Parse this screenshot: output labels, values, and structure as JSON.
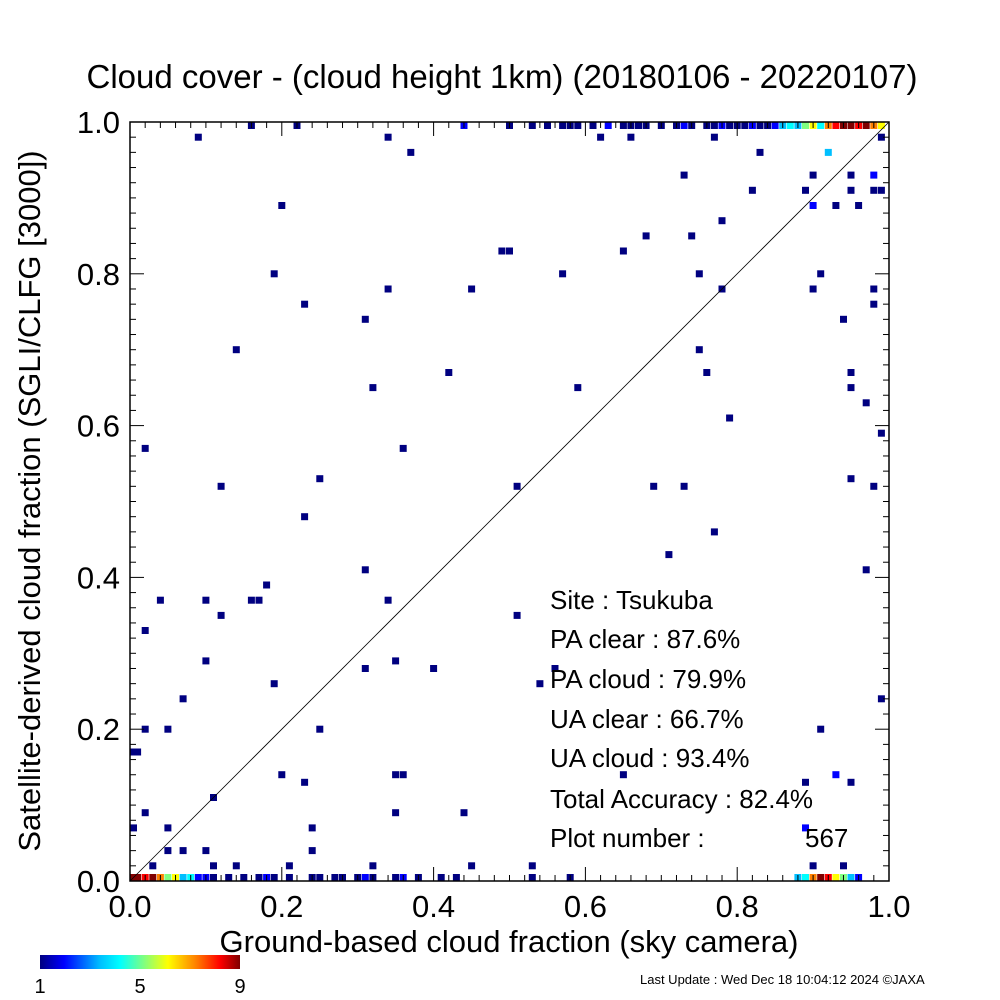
{
  "chart_data": {
    "type": "heatmap",
    "title": "Cloud cover - (cloud height 1km)  (20180106 - 20220107)",
    "xlabel": "Ground-based cloud fraction (sky camera)",
    "ylabel": "Satellite-derived cloud fraction (SGLI/CLFG [3000])",
    "xlim": [
      0.0,
      1.0
    ],
    "ylim": [
      0.0,
      1.0
    ],
    "x_ticks": [
      "0.0",
      "0.2",
      "0.4",
      "0.6",
      "0.8",
      "1.0"
    ],
    "y_ticks": [
      "0.0",
      "0.2",
      "0.4",
      "0.6",
      "0.8",
      "1.0"
    ],
    "reference_line": "y = x",
    "grid": false,
    "colorbar": {
      "min": 1,
      "max": 9,
      "tick_labels": [
        "1",
        "5",
        "9"
      ],
      "colors": [
        "#000080",
        "#0000ff",
        "#00bfff",
        "#00ffff",
        "#80ff80",
        "#ffff00",
        "#ff8000",
        "#ff0000",
        "#800000"
      ]
    },
    "points": [
      [
        0.0,
        0.0,
        9
      ],
      [
        0.01,
        0.0,
        9
      ],
      [
        0.02,
        0.0,
        8
      ],
      [
        0.03,
        0.0,
        9
      ],
      [
        0.04,
        0.0,
        7
      ],
      [
        0.05,
        0.0,
        5
      ],
      [
        0.06,
        0.0,
        6
      ],
      [
        0.07,
        0.0,
        3
      ],
      [
        0.08,
        0.0,
        4
      ],
      [
        0.09,
        0.0,
        2
      ],
      [
        0.1,
        0.0,
        2
      ],
      [
        0.11,
        0.0,
        1
      ],
      [
        0.13,
        0.0,
        1
      ],
      [
        0.15,
        0.0,
        1
      ],
      [
        0.17,
        0.0,
        1
      ],
      [
        0.18,
        0.0,
        2
      ],
      [
        0.19,
        0.0,
        1
      ],
      [
        0.21,
        0.0,
        1
      ],
      [
        0.24,
        0.0,
        1
      ],
      [
        0.25,
        0.0,
        1
      ],
      [
        0.27,
        0.0,
        1
      ],
      [
        0.28,
        0.0,
        1
      ],
      [
        0.3,
        0.0,
        1
      ],
      [
        0.31,
        0.0,
        2
      ],
      [
        0.32,
        0.0,
        1
      ],
      [
        0.35,
        0.0,
        1
      ],
      [
        0.36,
        0.0,
        2
      ],
      [
        0.38,
        0.0,
        1
      ],
      [
        0.41,
        0.0,
        1
      ],
      [
        0.43,
        0.0,
        1
      ],
      [
        0.53,
        0.0,
        1
      ],
      [
        0.58,
        0.0,
        1
      ],
      [
        0.88,
        0.0,
        3
      ],
      [
        0.89,
        0.0,
        4
      ],
      [
        0.9,
        0.0,
        7
      ],
      [
        0.91,
        0.0,
        9
      ],
      [
        0.92,
        0.0,
        8
      ],
      [
        0.93,
        0.0,
        6
      ],
      [
        0.94,
        0.0,
        5
      ],
      [
        0.95,
        0.0,
        3
      ],
      [
        0.96,
        0.0,
        2
      ],
      [
        0.16,
        1.0,
        1
      ],
      [
        0.22,
        1.0,
        1
      ],
      [
        0.44,
        1.0,
        2
      ],
      [
        0.5,
        1.0,
        1
      ],
      [
        0.53,
        1.0,
        1
      ],
      [
        0.55,
        1.0,
        1
      ],
      [
        0.57,
        1.0,
        1
      ],
      [
        0.58,
        1.0,
        1
      ],
      [
        0.59,
        1.0,
        1
      ],
      [
        0.61,
        1.0,
        1
      ],
      [
        0.63,
        1.0,
        2
      ],
      [
        0.65,
        1.0,
        1
      ],
      [
        0.66,
        1.0,
        1
      ],
      [
        0.67,
        1.0,
        1
      ],
      [
        0.68,
        1.0,
        1
      ],
      [
        0.7,
        1.0,
        1
      ],
      [
        0.72,
        1.0,
        1
      ],
      [
        0.73,
        1.0,
        2
      ],
      [
        0.74,
        1.0,
        1
      ],
      [
        0.76,
        1.0,
        1
      ],
      [
        0.77,
        1.0,
        1
      ],
      [
        0.78,
        1.0,
        2
      ],
      [
        0.79,
        1.0,
        1
      ],
      [
        0.8,
        1.0,
        1
      ],
      [
        0.81,
        1.0,
        1
      ],
      [
        0.82,
        1.0,
        2
      ],
      [
        0.83,
        1.0,
        1
      ],
      [
        0.84,
        1.0,
        1
      ],
      [
        0.85,
        1.0,
        2
      ],
      [
        0.86,
        1.0,
        3
      ],
      [
        0.87,
        1.0,
        4
      ],
      [
        0.88,
        1.0,
        3
      ],
      [
        0.89,
        1.0,
        5
      ],
      [
        0.9,
        1.0,
        6
      ],
      [
        0.91,
        1.0,
        4
      ],
      [
        0.92,
        1.0,
        7
      ],
      [
        0.93,
        1.0,
        8
      ],
      [
        0.94,
        1.0,
        9
      ],
      [
        0.95,
        1.0,
        9
      ],
      [
        0.96,
        1.0,
        8
      ],
      [
        0.97,
        1.0,
        9
      ],
      [
        0.98,
        1.0,
        7
      ],
      [
        0.99,
        1.0,
        6
      ],
      [
        0.09,
        0.98,
        1
      ],
      [
        0.34,
        0.98,
        1
      ],
      [
        0.37,
        0.96,
        1
      ],
      [
        0.2,
        0.89,
        1
      ],
      [
        0.19,
        0.8,
        1
      ],
      [
        0.23,
        0.76,
        1
      ],
      [
        0.31,
        0.74,
        1
      ],
      [
        0.34,
        0.78,
        1
      ],
      [
        0.14,
        0.7,
        1
      ],
      [
        0.32,
        0.65,
        1
      ],
      [
        0.42,
        0.67,
        1
      ],
      [
        0.45,
        0.78,
        1
      ],
      [
        0.49,
        0.83,
        1
      ],
      [
        0.5,
        0.83,
        1
      ],
      [
        0.57,
        0.8,
        1
      ],
      [
        0.59,
        0.65,
        1
      ],
      [
        0.65,
        0.83,
        1
      ],
      [
        0.68,
        0.85,
        1
      ],
      [
        0.73,
        0.93,
        1
      ],
      [
        0.74,
        0.85,
        1
      ],
      [
        0.75,
        0.8,
        1
      ],
      [
        0.75,
        0.7,
        1
      ],
      [
        0.76,
        0.67,
        1
      ],
      [
        0.77,
        0.98,
        1
      ],
      [
        0.78,
        0.87,
        1
      ],
      [
        0.78,
        0.78,
        1
      ],
      [
        0.79,
        0.61,
        1
      ],
      [
        0.82,
        0.91,
        1
      ],
      [
        0.83,
        0.96,
        1
      ],
      [
        0.89,
        0.91,
        1
      ],
      [
        0.9,
        0.93,
        1
      ],
      [
        0.9,
        0.89,
        2
      ],
      [
        0.9,
        0.78,
        1
      ],
      [
        0.91,
        0.8,
        1
      ],
      [
        0.92,
        0.96,
        3
      ],
      [
        0.93,
        0.89,
        1
      ],
      [
        0.94,
        0.74,
        1
      ],
      [
        0.95,
        0.93,
        1
      ],
      [
        0.95,
        0.91,
        1
      ],
      [
        0.95,
        0.67,
        1
      ],
      [
        0.95,
        0.65,
        1
      ],
      [
        0.96,
        0.89,
        1
      ],
      [
        0.97,
        0.63,
        1
      ],
      [
        0.98,
        0.93,
        2
      ],
      [
        0.98,
        0.91,
        1
      ],
      [
        0.98,
        0.78,
        1
      ],
      [
        0.98,
        0.76,
        1
      ],
      [
        0.99,
        0.98,
        1
      ],
      [
        0.99,
        0.91,
        1
      ],
      [
        0.99,
        0.59,
        1
      ],
      [
        0.62,
        0.98,
        1
      ],
      [
        0.66,
        0.98,
        1
      ],
      [
        0.02,
        0.57,
        1
      ],
      [
        0.12,
        0.52,
        1
      ],
      [
        0.25,
        0.53,
        1
      ],
      [
        0.23,
        0.48,
        1
      ],
      [
        0.36,
        0.57,
        1
      ],
      [
        0.51,
        0.52,
        1
      ],
      [
        0.69,
        0.52,
        1
      ],
      [
        0.73,
        0.52,
        1
      ],
      [
        0.71,
        0.43,
        1
      ],
      [
        0.77,
        0.46,
        1
      ],
      [
        0.95,
        0.53,
        1
      ],
      [
        0.97,
        0.41,
        1
      ],
      [
        0.98,
        0.52,
        1
      ],
      [
        0.99,
        0.24,
        1
      ],
      [
        0.02,
        0.33,
        1
      ],
      [
        0.04,
        0.37,
        1
      ],
      [
        0.1,
        0.37,
        1
      ],
      [
        0.12,
        0.35,
        1
      ],
      [
        0.16,
        0.37,
        1
      ],
      [
        0.17,
        0.37,
        1
      ],
      [
        0.18,
        0.39,
        1
      ],
      [
        0.31,
        0.41,
        1
      ],
      [
        0.34,
        0.37,
        1
      ],
      [
        0.51,
        0.35,
        1
      ],
      [
        0.1,
        0.29,
        1
      ],
      [
        0.07,
        0.24,
        1
      ],
      [
        0.19,
        0.26,
        1
      ],
      [
        0.31,
        0.28,
        1
      ],
      [
        0.35,
        0.29,
        1
      ],
      [
        0.4,
        0.28,
        1
      ],
      [
        0.54,
        0.26,
        1
      ],
      [
        0.56,
        0.28,
        1
      ],
      [
        0.0,
        0.17,
        1
      ],
      [
        0.01,
        0.17,
        1
      ],
      [
        0.02,
        0.2,
        1
      ],
      [
        0.05,
        0.2,
        1
      ],
      [
        0.25,
        0.2,
        1
      ],
      [
        0.91,
        0.2,
        1
      ],
      [
        0.11,
        0.11,
        1
      ],
      [
        0.2,
        0.14,
        1
      ],
      [
        0.23,
        0.13,
        1
      ],
      [
        0.35,
        0.14,
        1
      ],
      [
        0.36,
        0.14,
        1
      ],
      [
        0.65,
        0.14,
        1
      ],
      [
        0.89,
        0.13,
        1
      ],
      [
        0.93,
        0.14,
        2
      ],
      [
        0.95,
        0.13,
        1
      ],
      [
        0.02,
        0.09,
        1
      ],
      [
        0.35,
        0.09,
        1
      ],
      [
        0.44,
        0.09,
        1
      ],
      [
        0.0,
        0.07,
        1
      ],
      [
        0.05,
        0.07,
        1
      ],
      [
        0.24,
        0.07,
        1
      ],
      [
        0.89,
        0.07,
        2
      ],
      [
        0.05,
        0.04,
        1
      ],
      [
        0.07,
        0.04,
        1
      ],
      [
        0.1,
        0.04,
        1
      ],
      [
        0.24,
        0.04,
        1
      ],
      [
        0.03,
        0.02,
        1
      ],
      [
        0.11,
        0.02,
        1
      ],
      [
        0.14,
        0.02,
        1
      ],
      [
        0.21,
        0.02,
        1
      ],
      [
        0.32,
        0.02,
        1
      ],
      [
        0.45,
        0.02,
        1
      ],
      [
        0.53,
        0.02,
        1
      ],
      [
        0.9,
        0.02,
        1
      ],
      [
        0.94,
        0.02,
        1
      ]
    ]
  },
  "stats": {
    "site": "Site : Tsukuba",
    "pa_clear": "PA clear :  87.6%",
    "pa_cloud": "PA cloud :  79.9%",
    "ua_clear": "UA clear :  66.7%",
    "ua_cloud": "UA cloud :  93.4%",
    "total_accuracy": "Total Accuracy :  82.4%",
    "plot_number_label": "Plot number :",
    "plot_number_value": "567"
  },
  "footer": "Last Update : Wed Dec 18 10:04:12 2024  ©JAXA"
}
